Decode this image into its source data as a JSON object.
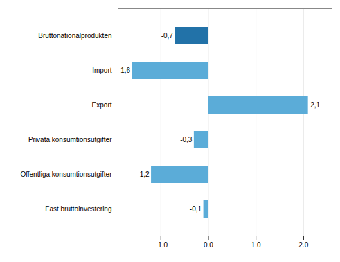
{
  "chart_data": {
    "type": "bar",
    "orientation": "horizontal",
    "categories": [
      "Bruttonationalprodukten",
      "Import",
      "Export",
      "Privata konsumtionsutgifter",
      "Offentliga konsumtionsutgifter",
      "Fast bruttoinvestering"
    ],
    "values": [
      -0.7,
      -1.6,
      2.1,
      -0.3,
      -1.2,
      -0.1
    ],
    "value_labels": [
      "-0,7",
      "-1,6",
      "2,1",
      "-0,3",
      "-1,2",
      "-0,1"
    ],
    "colors": [
      "#2272a8",
      "#5bacd8",
      "#5bacd8",
      "#5bacd8",
      "#5bacd8",
      "#5bacd8"
    ],
    "xlim": [
      -1.9,
      2.6
    ],
    "xticks": [
      -1,
      0,
      1,
      2
    ],
    "grid": true,
    "data_labels": true
  }
}
